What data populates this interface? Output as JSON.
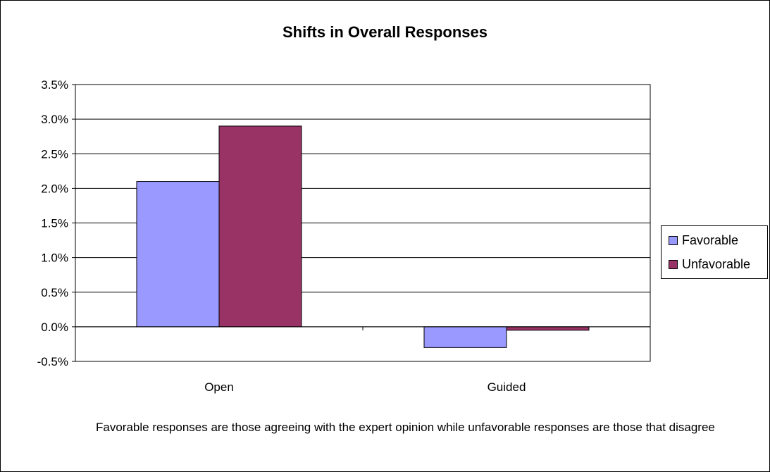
{
  "chart_data": {
    "type": "bar",
    "title": "Shifts in Overall Responses",
    "categories": [
      "Open",
      "Guided"
    ],
    "series": [
      {
        "name": "Favorable",
        "values": [
          0.021,
          -0.003
        ],
        "color": "#9999ff"
      },
      {
        "name": "Unfavorable",
        "values": [
          0.029,
          -0.0005
        ],
        "color": "#993366"
      }
    ],
    "ylim": [
      -0.005,
      0.035
    ],
    "yticks": [
      -0.005,
      0.0,
      0.005,
      0.01,
      0.015,
      0.02,
      0.025,
      0.03,
      0.035
    ],
    "ytick_labels": [
      "-0.5%",
      "0.0%",
      "0.5%",
      "1.0%",
      "1.5%",
      "2.0%",
      "2.5%",
      "3.0%",
      "3.5%"
    ],
    "grid": true,
    "legend": "right",
    "xlabel": "",
    "ylabel": ""
  },
  "note": "Favorable responses are those agreeing with the expert opinion while unfavorable responses are those that disagree"
}
